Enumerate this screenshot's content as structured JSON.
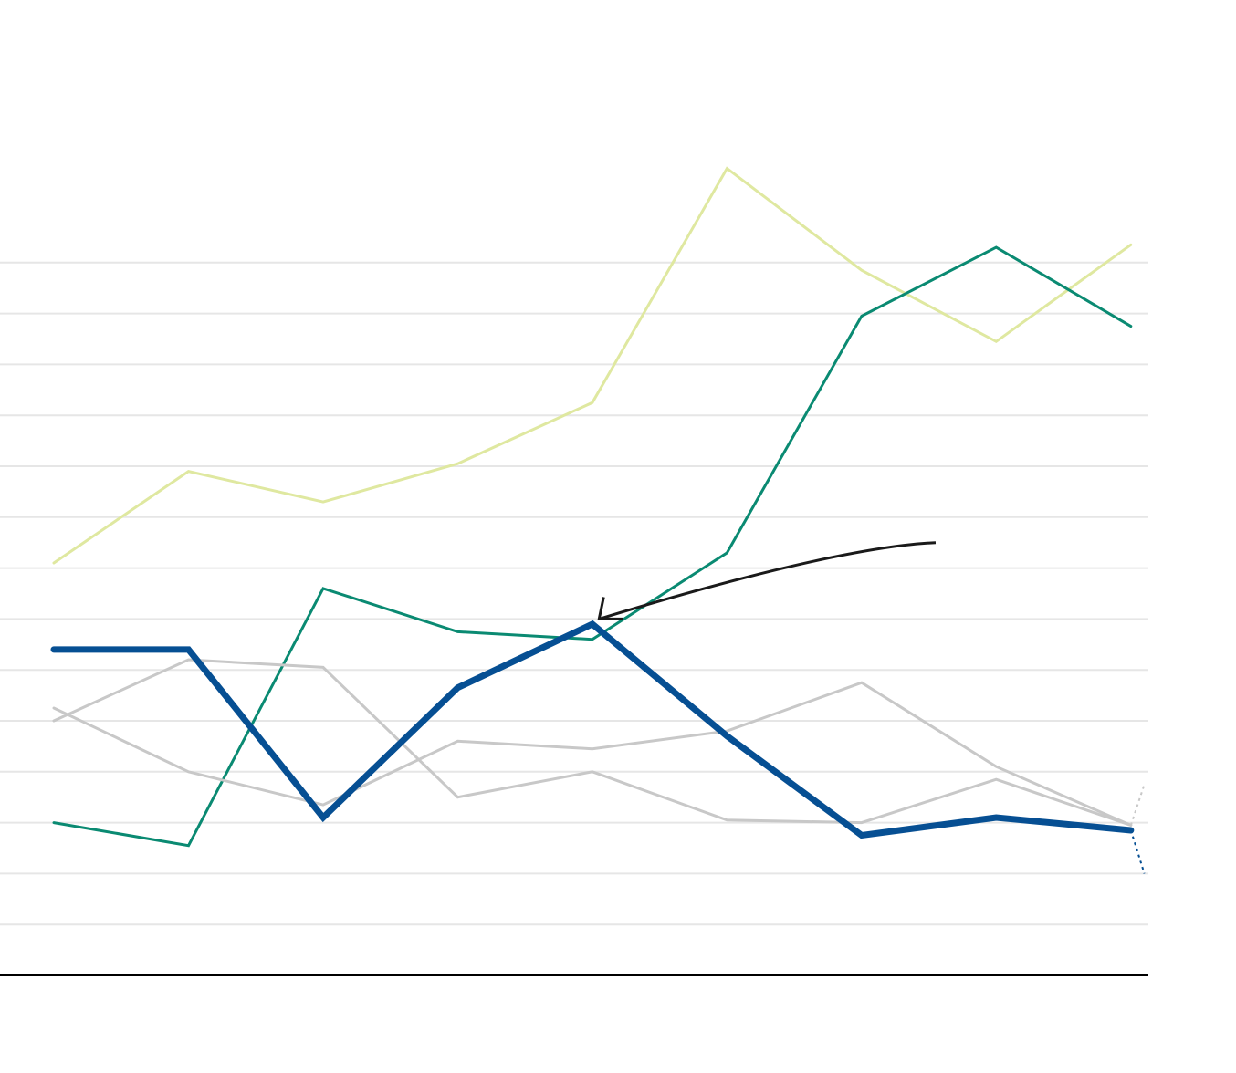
{
  "colors": {
    "background": "#ffffff",
    "grid": "#e6e6e6",
    "axis": "#000000",
    "annotation_arrow": "#1a1a1a"
  },
  "chart_data": {
    "type": "line",
    "title": "",
    "xlabel": "",
    "ylabel": "",
    "x": [
      1,
      2,
      3,
      4,
      5,
      6,
      7,
      8,
      9
    ],
    "xlim": [
      0.6,
      9.13
    ],
    "ylim": [
      0,
      15
    ],
    "grid": true,
    "gridlines": [
      1,
      2,
      3,
      4,
      5,
      6,
      7,
      8,
      9,
      10,
      11,
      12,
      13,
      14
    ],
    "legend": "none",
    "series": [
      {
        "color": "#dfe8a0",
        "width": 3,
        "emphasis": "light",
        "values": [
          8.1,
          9.9,
          9.3,
          10.05,
          11.25,
          15.85,
          13.85,
          12.45,
          14.35
        ]
      },
      {
        "color": "#0a8a72",
        "width": 3,
        "emphasis": "medium",
        "values": [
          3.0,
          2.55,
          7.6,
          6.75,
          6.6,
          8.3,
          12.95,
          14.3,
          12.75
        ]
      },
      {
        "color": "#c8c8c8",
        "width": 3,
        "emphasis": "muted",
        "values": [
          5.25,
          4.0,
          3.35,
          4.6,
          4.45,
          4.8,
          5.75,
          4.1,
          2.95
        ]
      },
      {
        "color": "#c8c8c8",
        "width": 3,
        "emphasis": "muted",
        "values": [
          5.0,
          6.2,
          6.05,
          3.5,
          4.0,
          3.05,
          3.0,
          3.85,
          2.95
        ]
      },
      {
        "color": "#064f93",
        "width": 7,
        "emphasis": "highlight",
        "values": [
          6.4,
          6.4,
          3.1,
          5.65,
          6.9,
          4.7,
          2.75,
          3.1,
          2.85
        ]
      }
    ],
    "projections": [
      {
        "color": "#c8c8c8",
        "from": [
          9,
          2.95
        ],
        "to": [
          9.1,
          3.75
        ]
      },
      {
        "color": "#064f93",
        "from": [
          9,
          2.85
        ],
        "to": [
          9.1,
          2.0
        ]
      }
    ],
    "annotation": {
      "type": "arrow",
      "from": [
        7.55,
        8.5
      ],
      "to": [
        5.05,
        7.0
      ]
    }
  }
}
